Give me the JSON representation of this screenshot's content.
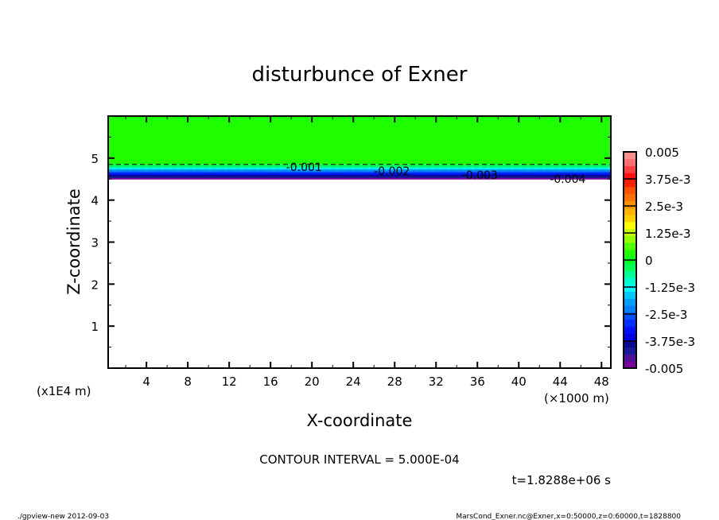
{
  "chart_data": {
    "type": "contour",
    "title": "disturbunce of Exner",
    "xlabel": "X-coordinate",
    "ylabel": "Z-coordinate",
    "xunit": "(×1000 m)",
    "yunit": "(x1E4 m)",
    "xlim": [
      0.3,
      48.9
    ],
    "ylim": [
      0,
      6
    ],
    "xticks": [
      "4",
      "8",
      "12",
      "16",
      "20",
      "24",
      "28",
      "32",
      "36",
      "40",
      "44",
      "48"
    ],
    "yticks": [
      "1",
      "2",
      "3",
      "4",
      "5"
    ],
    "contour_interval": "CONTOUR INTERVAL = 5.000E-04",
    "time": "t=1.8288e+06 s",
    "contour_labels": [
      "-0.001",
      "-0.002",
      "-0.003",
      "-0.004"
    ],
    "field_band": {
      "z_bottom": 4.5,
      "z_top": 4.85,
      "value_bottom": -0.005,
      "value_top": 0
    },
    "colorbar": {
      "min": -0.005,
      "max": 0.005,
      "step": 0.0005,
      "labels": [
        "0.005",
        "3.75e-3",
        "2.5e-3",
        "1.25e-3",
        "0",
        "-1.25e-3",
        "-2.5e-3",
        "-3.75e-3",
        "-0.005"
      ],
      "colors": [
        "#7a00a0",
        "#50109a",
        "#1a1a98",
        "#0a0a90",
        "#0000e8",
        "#0010ff",
        "#0030ff",
        "#0050ff",
        "#0080ff",
        "#00a0ff",
        "#00c8ff",
        "#00ffff",
        "#00ffd0",
        "#00ff90",
        "#00ff50",
        "#00ff20",
        "#20ff00",
        "#50ff00",
        "#90ff00",
        "#c8ff00",
        "#ffff00",
        "#ffd000",
        "#ffb000",
        "#ff9000",
        "#ff7000",
        "#ff5000",
        "#ff2000",
        "#ff1010",
        "#ff4040",
        "#ff7070",
        "#ff9090"
      ]
    }
  },
  "footer": {
    "left": "./gpview-new   2012-09-03",
    "right": "MarsCond_Exner.nc@Exner,x=0:50000,z=0:60000,t=1828800"
  }
}
